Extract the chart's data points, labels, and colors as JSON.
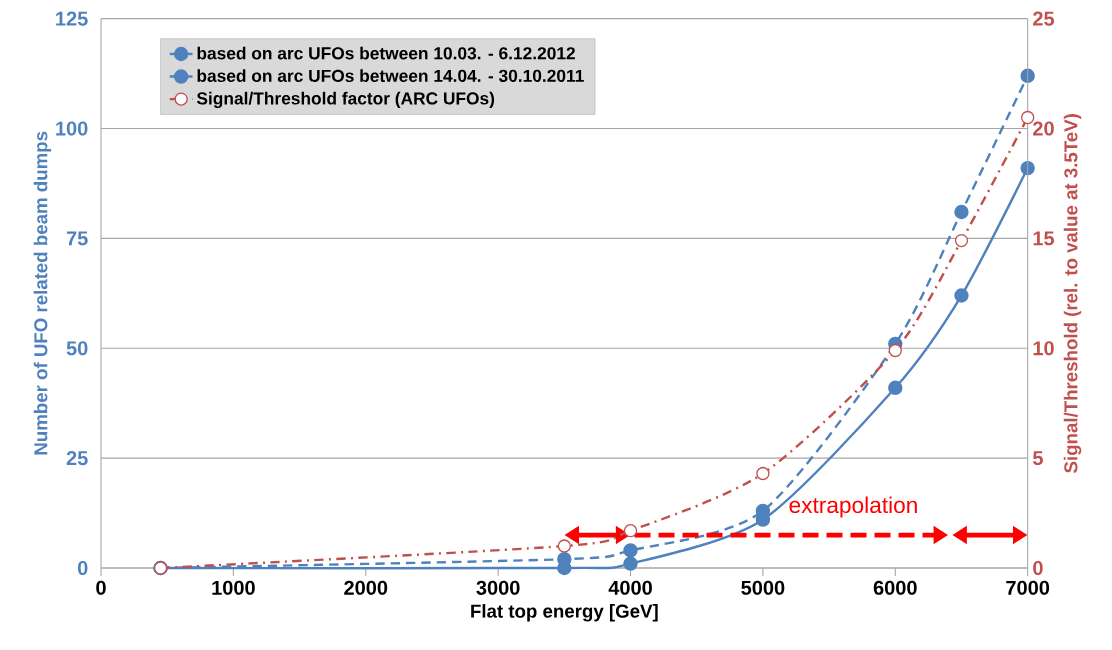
{
  "chart_data": {
    "type": "line",
    "xlabel": "Flat top energy [GeV]",
    "ylabel": "Number of UFO related beam dumps",
    "y2label": "Signal/Threshold (rel. to value at 3.5TeV)",
    "x": [
      450,
      3500,
      4000,
      5000,
      6000,
      6500,
      7000
    ],
    "series": [
      {
        "name": "based on arc UFOs between 10.03. - 6.12.2012",
        "color": "#4f81bd",
        "line_style": "solid",
        "marker": "circle",
        "values": [
          0,
          0,
          1,
          11,
          41,
          62,
          91
        ]
      },
      {
        "name": "based on arc UFOs between 14.04. - 30.10.2011",
        "color": "#4f81bd",
        "line_style": "dashed",
        "marker": "circle",
        "values": [
          0,
          2,
          4,
          13,
          51,
          81,
          112
        ]
      },
      {
        "name": "Signal/Threshold factor (ARC UFOs)",
        "color": "#c0504d",
        "line_style": "dashdot",
        "marker": "circle",
        "axis": "y2",
        "values": [
          0,
          1.0,
          1.7,
          4.3,
          9.9,
          14.9,
          20.5
        ]
      }
    ],
    "xlim": [
      0,
      7000
    ],
    "xticks": [
      0,
      1000,
      2000,
      3000,
      4000,
      5000,
      6000,
      7000
    ],
    "ylim": [
      0,
      125
    ],
    "yticks": [
      0,
      25,
      50,
      75,
      100,
      125
    ],
    "y2lim": [
      0,
      25
    ],
    "y2ticks": [
      0,
      5,
      10,
      15,
      20,
      25
    ],
    "annotations": [
      "extrapolation"
    ],
    "grid": "y",
    "legend": "top left"
  }
}
